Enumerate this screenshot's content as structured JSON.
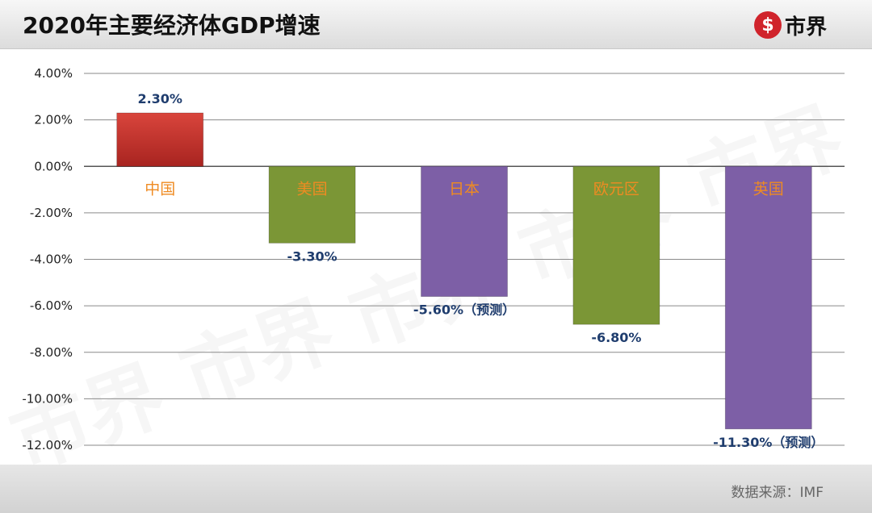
{
  "header": {
    "title": "2020年主要经济体GDP增速",
    "logo": {
      "icon": "dollar-s-icon",
      "text": "市界",
      "color": "#d0232b"
    }
  },
  "footer": {
    "source": "数据来源：IMF"
  },
  "watermark": "市界",
  "chart_data": {
    "type": "bar",
    "title": "2020年主要经济体GDP增速",
    "categories": [
      "中国",
      "美国",
      "日本",
      "欧元区",
      "英国"
    ],
    "values": [
      2.3,
      -3.3,
      -5.6,
      -6.8,
      -11.3
    ],
    "value_labels": [
      "2.30%",
      "-3.30%",
      "-5.60%（预测）",
      "-6.80%",
      "-11.30%（预测）"
    ],
    "colors": [
      "#c0302a",
      "#7b9636",
      "#7d5fa6",
      "#7b9636",
      "#7d5fa6"
    ],
    "ylim": [
      -12,
      4
    ],
    "yticks": [
      4,
      2,
      0,
      -2,
      -4,
      -6,
      -8,
      -10,
      -12
    ],
    "ytick_labels": [
      "4.00%",
      "2.00%",
      "0.00%",
      "-2.00%",
      "-4.00%",
      "-6.00%",
      "-8.00%",
      "-10.00%",
      "-12.00%"
    ],
    "grid": true,
    "xlabel": "",
    "ylabel": ""
  }
}
